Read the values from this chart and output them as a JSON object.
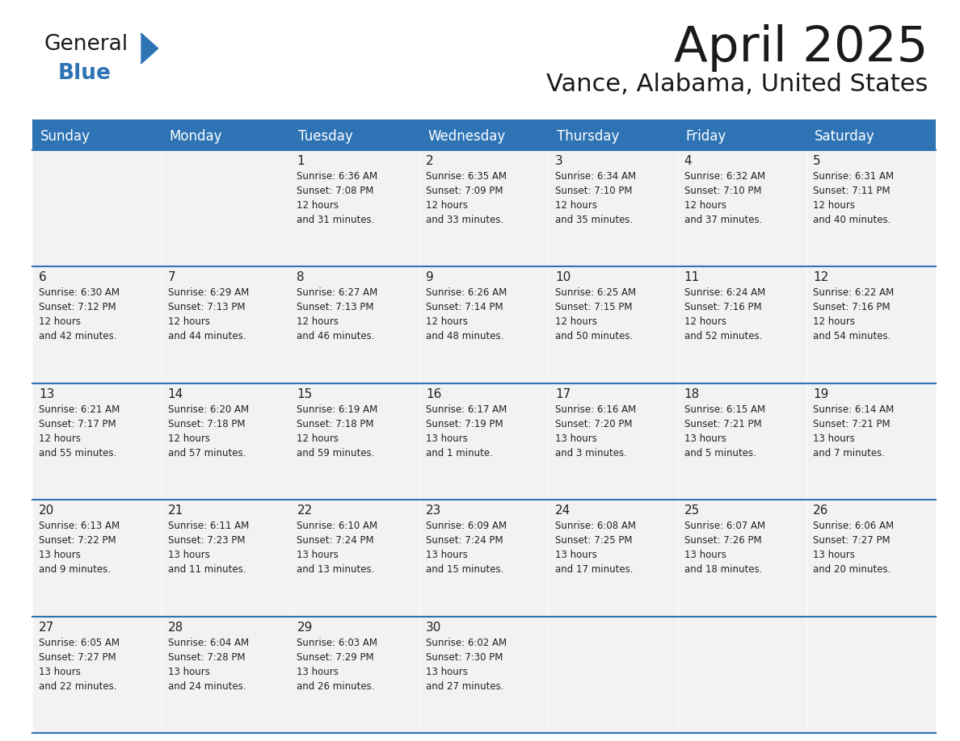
{
  "title": "April 2025",
  "subtitle": "Vance, Alabama, United States",
  "header_color": "#2E74B5",
  "header_text_color": "#FFFFFF",
  "day_names": [
    "Sunday",
    "Monday",
    "Tuesday",
    "Wednesday",
    "Thursday",
    "Friday",
    "Saturday"
  ],
  "background_color": "#FFFFFF",
  "cell_bg_color": "#F2F2F2",
  "grid_line_color": "#2E74B5",
  "text_color": "#222222",
  "logo_general_color": "#1a1a1a",
  "logo_blue_color": "#2E74B5",
  "days": [
    {
      "date": null,
      "sunrise": null,
      "sunset": null,
      "daylight": null
    },
    {
      "date": null,
      "sunrise": null,
      "sunset": null,
      "daylight": null
    },
    {
      "date": 1,
      "sunrise": "6:36 AM",
      "sunset": "7:08 PM",
      "daylight": "12 hours\nand 31 minutes."
    },
    {
      "date": 2,
      "sunrise": "6:35 AM",
      "sunset": "7:09 PM",
      "daylight": "12 hours\nand 33 minutes."
    },
    {
      "date": 3,
      "sunrise": "6:34 AM",
      "sunset": "7:10 PM",
      "daylight": "12 hours\nand 35 minutes."
    },
    {
      "date": 4,
      "sunrise": "6:32 AM",
      "sunset": "7:10 PM",
      "daylight": "12 hours\nand 37 minutes."
    },
    {
      "date": 5,
      "sunrise": "6:31 AM",
      "sunset": "7:11 PM",
      "daylight": "12 hours\nand 40 minutes."
    },
    {
      "date": 6,
      "sunrise": "6:30 AM",
      "sunset": "7:12 PM",
      "daylight": "12 hours\nand 42 minutes."
    },
    {
      "date": 7,
      "sunrise": "6:29 AM",
      "sunset": "7:13 PM",
      "daylight": "12 hours\nand 44 minutes."
    },
    {
      "date": 8,
      "sunrise": "6:27 AM",
      "sunset": "7:13 PM",
      "daylight": "12 hours\nand 46 minutes."
    },
    {
      "date": 9,
      "sunrise": "6:26 AM",
      "sunset": "7:14 PM",
      "daylight": "12 hours\nand 48 minutes."
    },
    {
      "date": 10,
      "sunrise": "6:25 AM",
      "sunset": "7:15 PM",
      "daylight": "12 hours\nand 50 minutes."
    },
    {
      "date": 11,
      "sunrise": "6:24 AM",
      "sunset": "7:16 PM",
      "daylight": "12 hours\nand 52 minutes."
    },
    {
      "date": 12,
      "sunrise": "6:22 AM",
      "sunset": "7:16 PM",
      "daylight": "12 hours\nand 54 minutes."
    },
    {
      "date": 13,
      "sunrise": "6:21 AM",
      "sunset": "7:17 PM",
      "daylight": "12 hours\nand 55 minutes."
    },
    {
      "date": 14,
      "sunrise": "6:20 AM",
      "sunset": "7:18 PM",
      "daylight": "12 hours\nand 57 minutes."
    },
    {
      "date": 15,
      "sunrise": "6:19 AM",
      "sunset": "7:18 PM",
      "daylight": "12 hours\nand 59 minutes."
    },
    {
      "date": 16,
      "sunrise": "6:17 AM",
      "sunset": "7:19 PM",
      "daylight": "13 hours\nand 1 minute."
    },
    {
      "date": 17,
      "sunrise": "6:16 AM",
      "sunset": "7:20 PM",
      "daylight": "13 hours\nand 3 minutes."
    },
    {
      "date": 18,
      "sunrise": "6:15 AM",
      "sunset": "7:21 PM",
      "daylight": "13 hours\nand 5 minutes."
    },
    {
      "date": 19,
      "sunrise": "6:14 AM",
      "sunset": "7:21 PM",
      "daylight": "13 hours\nand 7 minutes."
    },
    {
      "date": 20,
      "sunrise": "6:13 AM",
      "sunset": "7:22 PM",
      "daylight": "13 hours\nand 9 minutes."
    },
    {
      "date": 21,
      "sunrise": "6:11 AM",
      "sunset": "7:23 PM",
      "daylight": "13 hours\nand 11 minutes."
    },
    {
      "date": 22,
      "sunrise": "6:10 AM",
      "sunset": "7:24 PM",
      "daylight": "13 hours\nand 13 minutes."
    },
    {
      "date": 23,
      "sunrise": "6:09 AM",
      "sunset": "7:24 PM",
      "daylight": "13 hours\nand 15 minutes."
    },
    {
      "date": 24,
      "sunrise": "6:08 AM",
      "sunset": "7:25 PM",
      "daylight": "13 hours\nand 17 minutes."
    },
    {
      "date": 25,
      "sunrise": "6:07 AM",
      "sunset": "7:26 PM",
      "daylight": "13 hours\nand 18 minutes."
    },
    {
      "date": 26,
      "sunrise": "6:06 AM",
      "sunset": "7:27 PM",
      "daylight": "13 hours\nand 20 minutes."
    },
    {
      "date": 27,
      "sunrise": "6:05 AM",
      "sunset": "7:27 PM",
      "daylight": "13 hours\nand 22 minutes."
    },
    {
      "date": 28,
      "sunrise": "6:04 AM",
      "sunset": "7:28 PM",
      "daylight": "13 hours\nand 24 minutes."
    },
    {
      "date": 29,
      "sunrise": "6:03 AM",
      "sunset": "7:29 PM",
      "daylight": "13 hours\nand 26 minutes."
    },
    {
      "date": 30,
      "sunrise": "6:02 AM",
      "sunset": "7:30 PM",
      "daylight": "13 hours\nand 27 minutes."
    },
    {
      "date": null,
      "sunrise": null,
      "sunset": null,
      "daylight": null
    },
    {
      "date": null,
      "sunrise": null,
      "sunset": null,
      "daylight": null
    },
    {
      "date": null,
      "sunrise": null,
      "sunset": null,
      "daylight": null
    }
  ]
}
